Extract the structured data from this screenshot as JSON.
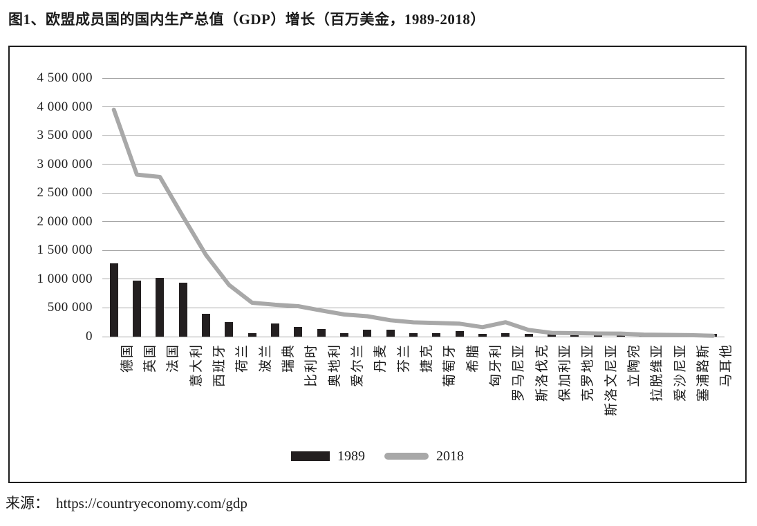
{
  "figure": {
    "title": "图1、欧盟成员国的国内生产总值（GDP）增长（百万美金，1989-2018）",
    "source_prefix": "来源：",
    "source_url": "https://countryeconomy.com/gdp"
  },
  "legend": {
    "bar_label": "1989",
    "line_label": "2018"
  },
  "colors": {
    "bar": "#231f20",
    "line": "#a8a8a8",
    "grid": "#a6a6a6",
    "frame": "#1c1c1c",
    "text": "#1a1a1a"
  },
  "chart_data": {
    "type": "combo (bar + line)",
    "title": "图1、欧盟成员国的国内生产总值（GDP）增长（百万美金，1989-2018）",
    "unit": "百万美金",
    "categories": [
      "德国",
      "英国",
      "法国",
      "意大利",
      "西班牙",
      "荷兰",
      "波兰",
      "瑞典",
      "比利时",
      "奥地利",
      "爱尔兰",
      "丹麦",
      "芬兰",
      "捷克",
      "葡萄牙",
      "希腊",
      "匈牙利",
      "罗马尼亚",
      "斯洛伐克",
      "保加利亚",
      "克罗地亚",
      "斯洛文尼亚",
      "立陶宛",
      "拉脱维亚",
      "爱沙尼亚",
      "塞浦路斯",
      "马耳他"
    ],
    "series": [
      {
        "name": "1989",
        "chart_type": "bar",
        "color": "#231f20",
        "values": [
          1280000,
          980000,
          1020000,
          940000,
          400000,
          250000,
          55000,
          230000,
          165000,
          130000,
          55000,
          120000,
          125000,
          55000,
          62000,
          100000,
          45000,
          58000,
          50000,
          45000,
          30000,
          28000,
          35000,
          25000,
          22000,
          25000,
          45000
        ]
      },
      {
        "name": "2018",
        "chart_type": "line",
        "color": "#a8a8a8",
        "values": [
          3950000,
          2820000,
          2780000,
          2090000,
          1420000,
          900000,
          590000,
          555000,
          530000,
          455000,
          385000,
          355000,
          285000,
          248000,
          238000,
          225000,
          165000,
          250000,
          115000,
          65000,
          60000,
          54000,
          53000,
          35000,
          30000,
          25000,
          15000
        ]
      }
    ],
    "ylim": [
      0,
      4500000
    ],
    "ytick_step": 500000,
    "ytick_labels": [
      "0",
      "500 000",
      "1 000 000",
      "1 500 000",
      "2 000 000",
      "2 500 000",
      "3 000 000",
      "3 500 000",
      "4 000 000",
      "4 500 000"
    ],
    "grid": true,
    "x_label_rotation": -90,
    "legend_position": "bottom-center",
    "xlabel": "",
    "ylabel": ""
  }
}
